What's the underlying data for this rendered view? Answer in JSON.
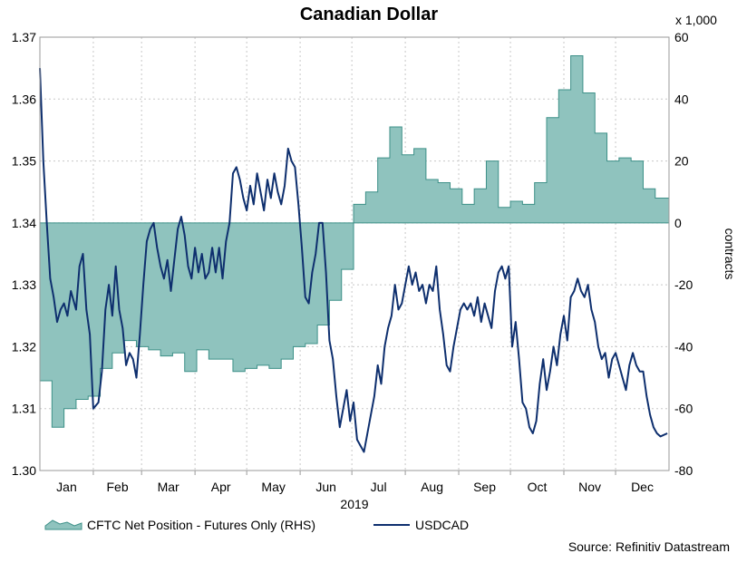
{
  "chart_data": {
    "type": "line",
    "title": "Canadian Dollar",
    "x_axis": {
      "year_label": "2019",
      "months": [
        "Jan",
        "Feb",
        "Mar",
        "Apr",
        "May",
        "Jun",
        "Jul",
        "Aug",
        "Sep",
        "Oct",
        "Nov",
        "Dec"
      ]
    },
    "left_axis": {
      "ylim": [
        1.3,
        1.37
      ],
      "ticks": [
        "1.30",
        "1.31",
        "1.32",
        "1.33",
        "1.34",
        "1.35",
        "1.36",
        "1.37"
      ]
    },
    "right_axis": {
      "label": "contracts",
      "multiplier_label": "x 1,000",
      "ylim": [
        -80,
        60
      ],
      "ticks": [
        "-80",
        "-60",
        "-40",
        "-20",
        "0",
        "20",
        "40",
        "60"
      ]
    },
    "grid": true,
    "legend": {
      "placement": "bottom-left"
    },
    "source": "Source: Refinitiv Datastream",
    "colors": {
      "area_fill": "#8fc3be",
      "area_stroke": "#3d9088",
      "line": "#0e2f6e",
      "grid": "#c8c8c8"
    },
    "series": [
      {
        "name": "CFTC Net Position - Futures Only (RHS)",
        "kind": "area-step",
        "axis": "right",
        "points": [
          [
            "2019-01-01",
            -51
          ],
          [
            "2019-01-08",
            -66
          ],
          [
            "2019-01-15",
            -60
          ],
          [
            "2019-01-22",
            -57
          ],
          [
            "2019-01-29",
            -56
          ],
          [
            "2019-02-05",
            -47
          ],
          [
            "2019-02-12",
            -42
          ],
          [
            "2019-02-19",
            -38
          ],
          [
            "2019-02-26",
            -40
          ],
          [
            "2019-03-05",
            -41
          ],
          [
            "2019-03-12",
            -43
          ],
          [
            "2019-03-19",
            -42
          ],
          [
            "2019-03-26",
            -48
          ],
          [
            "2019-04-02",
            -41
          ],
          [
            "2019-04-09",
            -44
          ],
          [
            "2019-04-16",
            -44
          ],
          [
            "2019-04-23",
            -48
          ],
          [
            "2019-04-30",
            -47
          ],
          [
            "2019-05-07",
            -46
          ],
          [
            "2019-05-14",
            -47
          ],
          [
            "2019-05-21",
            -44
          ],
          [
            "2019-05-28",
            -40
          ],
          [
            "2019-06-04",
            -39
          ],
          [
            "2019-06-11",
            -33
          ],
          [
            "2019-06-18",
            -25
          ],
          [
            "2019-06-25",
            -15
          ],
          [
            "2019-07-02",
            6
          ],
          [
            "2019-07-09",
            10
          ],
          [
            "2019-07-16",
            21
          ],
          [
            "2019-07-23",
            31
          ],
          [
            "2019-07-30",
            22
          ],
          [
            "2019-08-06",
            24
          ],
          [
            "2019-08-13",
            14
          ],
          [
            "2019-08-20",
            13
          ],
          [
            "2019-08-27",
            11
          ],
          [
            "2019-09-03",
            6
          ],
          [
            "2019-09-10",
            11
          ],
          [
            "2019-09-17",
            20
          ],
          [
            "2019-09-24",
            5
          ],
          [
            "2019-10-01",
            7
          ],
          [
            "2019-10-08",
            6
          ],
          [
            "2019-10-15",
            13
          ],
          [
            "2019-10-22",
            34
          ],
          [
            "2019-10-29",
            43
          ],
          [
            "2019-11-05",
            54
          ],
          [
            "2019-11-12",
            42
          ],
          [
            "2019-11-19",
            29
          ],
          [
            "2019-11-26",
            20
          ],
          [
            "2019-12-03",
            21
          ],
          [
            "2019-12-10",
            20
          ],
          [
            "2019-12-17",
            11
          ],
          [
            "2019-12-24",
            8
          ],
          [
            "2019-12-31",
            8
          ]
        ]
      },
      {
        "name": "USDCAD",
        "kind": "line",
        "axis": "left",
        "points": [
          [
            "2019-01-01",
            1.365
          ],
          [
            "2019-01-03",
            1.35
          ],
          [
            "2019-01-05",
            1.34
          ],
          [
            "2019-01-07",
            1.331
          ],
          [
            "2019-01-09",
            1.328
          ],
          [
            "2019-01-11",
            1.324
          ],
          [
            "2019-01-13",
            1.326
          ],
          [
            "2019-01-15",
            1.327
          ],
          [
            "2019-01-17",
            1.325
          ],
          [
            "2019-01-19",
            1.329
          ],
          [
            "2019-01-22",
            1.326
          ],
          [
            "2019-01-24",
            1.333
          ],
          [
            "2019-01-26",
            1.335
          ],
          [
            "2019-01-28",
            1.326
          ],
          [
            "2019-01-30",
            1.322
          ],
          [
            "2019-02-01",
            1.31
          ],
          [
            "2019-02-04",
            1.311
          ],
          [
            "2019-02-06",
            1.316
          ],
          [
            "2019-02-08",
            1.326
          ],
          [
            "2019-02-10",
            1.33
          ],
          [
            "2019-02-12",
            1.325
          ],
          [
            "2019-02-14",
            1.333
          ],
          [
            "2019-02-16",
            1.326
          ],
          [
            "2019-02-18",
            1.323
          ],
          [
            "2019-02-20",
            1.317
          ],
          [
            "2019-02-22",
            1.319
          ],
          [
            "2019-02-24",
            1.318
          ],
          [
            "2019-02-26",
            1.315
          ],
          [
            "2019-02-28",
            1.322
          ],
          [
            "2019-03-02",
            1.33
          ],
          [
            "2019-03-04",
            1.337
          ],
          [
            "2019-03-06",
            1.339
          ],
          [
            "2019-03-08",
            1.34
          ],
          [
            "2019-03-10",
            1.336
          ],
          [
            "2019-03-12",
            1.333
          ],
          [
            "2019-03-14",
            1.331
          ],
          [
            "2019-03-16",
            1.334
          ],
          [
            "2019-03-18",
            1.329
          ],
          [
            "2019-03-20",
            1.334
          ],
          [
            "2019-03-22",
            1.339
          ],
          [
            "2019-03-24",
            1.341
          ],
          [
            "2019-03-26",
            1.338
          ],
          [
            "2019-03-28",
            1.333
          ],
          [
            "2019-03-30",
            1.331
          ],
          [
            "2019-04-01",
            1.336
          ],
          [
            "2019-04-03",
            1.332
          ],
          [
            "2019-04-05",
            1.335
          ],
          [
            "2019-04-07",
            1.331
          ],
          [
            "2019-04-09",
            1.332
          ],
          [
            "2019-04-11",
            1.336
          ],
          [
            "2019-04-13",
            1.332
          ],
          [
            "2019-04-15",
            1.336
          ],
          [
            "2019-04-17",
            1.331
          ],
          [
            "2019-04-19",
            1.337
          ],
          [
            "2019-04-21",
            1.34
          ],
          [
            "2019-04-23",
            1.348
          ],
          [
            "2019-04-25",
            1.349
          ],
          [
            "2019-04-27",
            1.347
          ],
          [
            "2019-04-29",
            1.344
          ],
          [
            "2019-05-01",
            1.342
          ],
          [
            "2019-05-03",
            1.346
          ],
          [
            "2019-05-05",
            1.343
          ],
          [
            "2019-05-07",
            1.348
          ],
          [
            "2019-05-09",
            1.345
          ],
          [
            "2019-05-11",
            1.342
          ],
          [
            "2019-05-13",
            1.347
          ],
          [
            "2019-05-15",
            1.344
          ],
          [
            "2019-05-17",
            1.348
          ],
          [
            "2019-05-19",
            1.345
          ],
          [
            "2019-05-21",
            1.343
          ],
          [
            "2019-05-23",
            1.346
          ],
          [
            "2019-05-25",
            1.352
          ],
          [
            "2019-05-27",
            1.35
          ],
          [
            "2019-05-29",
            1.349
          ],
          [
            "2019-05-31",
            1.343
          ],
          [
            "2019-06-02",
            1.336
          ],
          [
            "2019-06-04",
            1.328
          ],
          [
            "2019-06-06",
            1.327
          ],
          [
            "2019-06-08",
            1.332
          ],
          [
            "2019-06-10",
            1.335
          ],
          [
            "2019-06-12",
            1.34
          ],
          [
            "2019-06-14",
            1.34
          ],
          [
            "2019-06-16",
            1.332
          ],
          [
            "2019-06-18",
            1.321
          ],
          [
            "2019-06-20",
            1.318
          ],
          [
            "2019-06-22",
            1.312
          ],
          [
            "2019-06-24",
            1.307
          ],
          [
            "2019-06-26",
            1.31
          ],
          [
            "2019-06-28",
            1.313
          ],
          [
            "2019-06-30",
            1.308
          ],
          [
            "2019-07-02",
            1.311
          ],
          [
            "2019-07-04",
            1.305
          ],
          [
            "2019-07-06",
            1.304
          ],
          [
            "2019-07-08",
            1.303
          ],
          [
            "2019-07-10",
            1.306
          ],
          [
            "2019-07-12",
            1.309
          ],
          [
            "2019-07-14",
            1.312
          ],
          [
            "2019-07-16",
            1.317
          ],
          [
            "2019-07-18",
            1.314
          ],
          [
            "2019-07-20",
            1.32
          ],
          [
            "2019-07-22",
            1.323
          ],
          [
            "2019-07-24",
            1.325
          ],
          [
            "2019-07-26",
            1.33
          ],
          [
            "2019-07-28",
            1.326
          ],
          [
            "2019-07-30",
            1.327
          ],
          [
            "2019-08-01",
            1.33
          ],
          [
            "2019-08-03",
            1.333
          ],
          [
            "2019-08-05",
            1.33
          ],
          [
            "2019-08-07",
            1.332
          ],
          [
            "2019-08-09",
            1.329
          ],
          [
            "2019-08-11",
            1.33
          ],
          [
            "2019-08-13",
            1.327
          ],
          [
            "2019-08-15",
            1.33
          ],
          [
            "2019-08-17",
            1.329
          ],
          [
            "2019-08-19",
            1.333
          ],
          [
            "2019-08-21",
            1.326
          ],
          [
            "2019-08-23",
            1.322
          ],
          [
            "2019-08-25",
            1.317
          ],
          [
            "2019-08-27",
            1.316
          ],
          [
            "2019-08-29",
            1.32
          ],
          [
            "2019-08-31",
            1.323
          ],
          [
            "2019-09-02",
            1.326
          ],
          [
            "2019-09-04",
            1.327
          ],
          [
            "2019-09-06",
            1.326
          ],
          [
            "2019-09-08",
            1.327
          ],
          [
            "2019-09-10",
            1.325
          ],
          [
            "2019-09-12",
            1.328
          ],
          [
            "2019-09-14",
            1.324
          ],
          [
            "2019-09-16",
            1.327
          ],
          [
            "2019-09-18",
            1.325
          ],
          [
            "2019-09-20",
            1.323
          ],
          [
            "2019-09-22",
            1.329
          ],
          [
            "2019-09-24",
            1.332
          ],
          [
            "2019-09-26",
            1.333
          ],
          [
            "2019-09-28",
            1.331
          ],
          [
            "2019-09-30",
            1.333
          ],
          [
            "2019-10-02",
            1.32
          ],
          [
            "2019-10-04",
            1.324
          ],
          [
            "2019-10-06",
            1.318
          ],
          [
            "2019-10-08",
            1.311
          ],
          [
            "2019-10-10",
            1.31
          ],
          [
            "2019-10-12",
            1.307
          ],
          [
            "2019-10-14",
            1.306
          ],
          [
            "2019-10-16",
            1.308
          ],
          [
            "2019-10-18",
            1.314
          ],
          [
            "2019-10-20",
            1.318
          ],
          [
            "2019-10-22",
            1.313
          ],
          [
            "2019-10-24",
            1.316
          ],
          [
            "2019-10-26",
            1.32
          ],
          [
            "2019-10-28",
            1.317
          ],
          [
            "2019-10-30",
            1.322
          ],
          [
            "2019-11-01",
            1.325
          ],
          [
            "2019-11-03",
            1.321
          ],
          [
            "2019-11-05",
            1.328
          ],
          [
            "2019-11-07",
            1.329
          ],
          [
            "2019-11-09",
            1.331
          ],
          [
            "2019-11-11",
            1.329
          ],
          [
            "2019-11-13",
            1.328
          ],
          [
            "2019-11-15",
            1.33
          ],
          [
            "2019-11-17",
            1.326
          ],
          [
            "2019-11-19",
            1.324
          ],
          [
            "2019-11-21",
            1.32
          ],
          [
            "2019-11-23",
            1.318
          ],
          [
            "2019-11-25",
            1.319
          ],
          [
            "2019-11-27",
            1.315
          ],
          [
            "2019-11-29",
            1.318
          ],
          [
            "2019-12-01",
            1.319
          ],
          [
            "2019-12-03",
            1.317
          ],
          [
            "2019-12-05",
            1.315
          ],
          [
            "2019-12-07",
            1.313
          ],
          [
            "2019-12-09",
            1.317
          ],
          [
            "2019-12-11",
            1.319
          ],
          [
            "2019-12-13",
            1.317
          ],
          [
            "2019-12-15",
            1.316
          ],
          [
            "2019-12-17",
            1.316
          ],
          [
            "2019-12-19",
            1.312
          ],
          [
            "2019-12-21",
            1.309
          ],
          [
            "2019-12-23",
            1.307
          ],
          [
            "2019-12-25",
            1.306
          ],
          [
            "2019-12-27",
            1.3055
          ],
          [
            "2019-12-31",
            1.306
          ]
        ]
      }
    ]
  }
}
